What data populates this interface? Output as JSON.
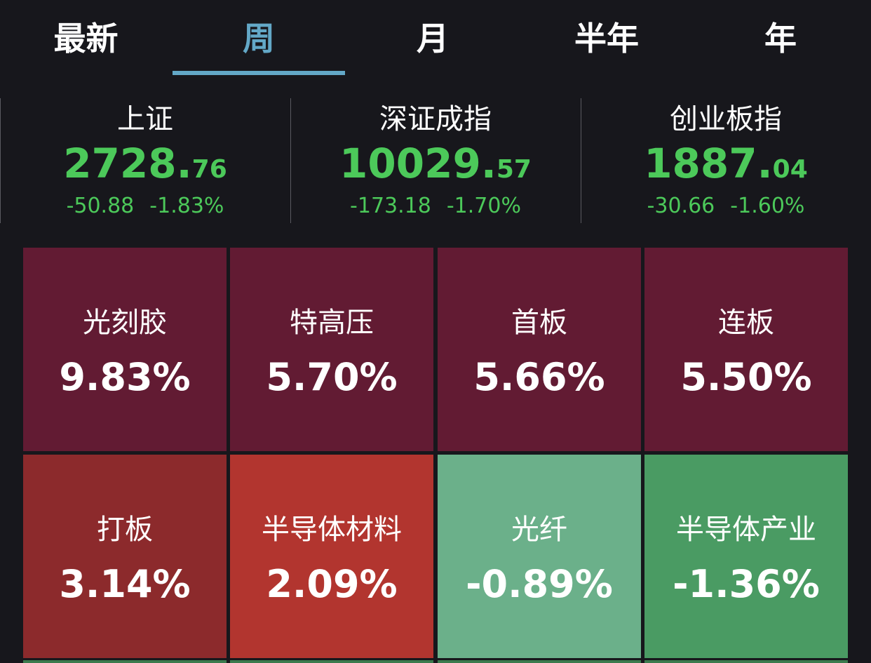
{
  "tabs": [
    {
      "label": "最新",
      "active": false
    },
    {
      "label": "周",
      "active": true
    },
    {
      "label": "月",
      "active": false
    },
    {
      "label": "半年",
      "active": false
    },
    {
      "label": "年",
      "active": false
    }
  ],
  "indices": [
    {
      "name": "上证",
      "value_int": "2728.",
      "value_dec": "76",
      "change": "-50.88",
      "change_pct": "-1.83%"
    },
    {
      "name": "深证成指",
      "value_int": "10029.",
      "value_dec": "57",
      "change": "-173.18",
      "change_pct": "-1.70%"
    },
    {
      "name": "创业板指",
      "value_int": "1887.",
      "value_dec": "04",
      "change": "-30.66",
      "change_pct": "-1.60%"
    }
  ],
  "sectors": [
    {
      "name": "光刻胶",
      "value": "9.83%",
      "color": "#621b33"
    },
    {
      "name": "特高压",
      "value": "5.70%",
      "color": "#621b33"
    },
    {
      "name": "首板",
      "value": "5.66%",
      "color": "#621b33"
    },
    {
      "name": "连板",
      "value": "5.50%",
      "color": "#621b33"
    },
    {
      "name": "打板",
      "value": "3.14%",
      "color": "#8c2a2c"
    },
    {
      "name": "半导体材料",
      "value": "2.09%",
      "color": "#b2352f"
    },
    {
      "name": "光纤",
      "value": "-0.89%",
      "color": "#6bb08a"
    },
    {
      "name": "半导体产业",
      "value": "-1.36%",
      "color": "#4a9b63"
    }
  ],
  "colors": {
    "background": "#17171c",
    "accent": "#63a8c7",
    "down_green": "#4cc95a"
  }
}
